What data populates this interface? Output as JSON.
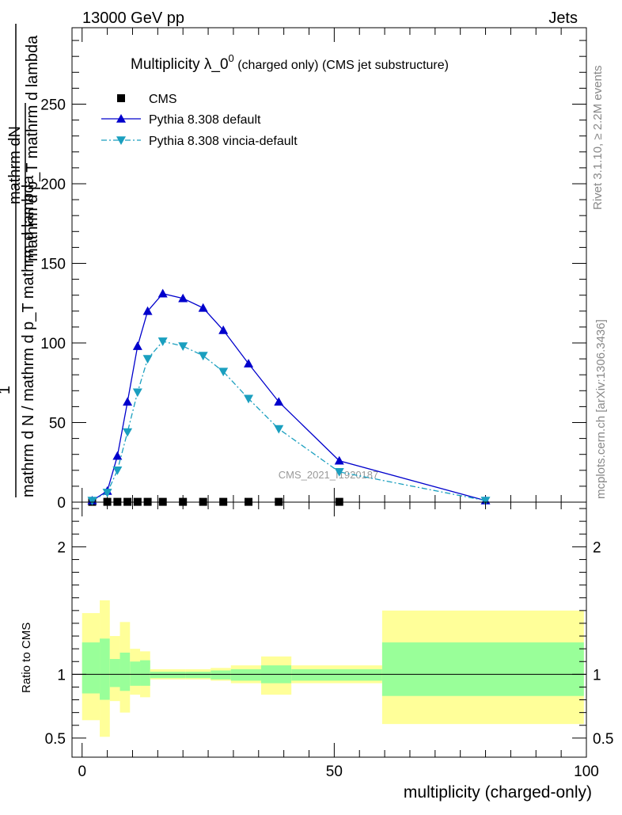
{
  "header": {
    "left": "13000 GeV pp",
    "right": "Jets"
  },
  "side_labels": {
    "rivet": "Rivet 3.1.10, ≥ 2.2M events",
    "mcplots": "mcplots.cern.ch [arXiv:1306.3436]"
  },
  "watermark": "CMS_2021_I1920187",
  "chart_data": [
    {
      "type": "line",
      "title_main": "Multiplicity λ_0",
      "title_sup": "0",
      "title_rest": " (charged only) (CMS jet substructure)",
      "ylabel_top_num": "mathrm dN",
      "ylabel_top_den": "mathrm d p_T mathrm d lambda",
      "ylabel_one": "1",
      "ylabel_bottom": "mathrm d N / mathrm d p_T mathrm d lambda",
      "ylim": [
        0,
        298
      ],
      "xlim": [
        -2,
        100
      ],
      "y_ticks": [
        "0",
        "50",
        "100",
        "150",
        "200",
        "250"
      ],
      "y_tick_values": [
        0,
        50,
        100,
        150,
        200,
        250
      ],
      "legend_position": "top-left",
      "series": [
        {
          "name": "CMS",
          "color": "#000000",
          "marker": "square",
          "x": [
            2,
            5,
            7,
            9,
            11,
            13,
            16,
            20,
            24,
            28,
            33,
            39,
            51
          ],
          "values": [
            0.2,
            0.2,
            0.2,
            0.2,
            0.2,
            0.2,
            0.2,
            0.2,
            0.2,
            0.2,
            0.2,
            0.2,
            0.2
          ]
        },
        {
          "name": "Pythia 8.308 default",
          "color": "#0000cc",
          "marker": "triangle-up",
          "x": [
            2,
            5,
            7,
            9,
            11,
            13,
            16,
            20,
            24,
            28,
            33,
            39,
            51,
            80
          ],
          "values": [
            1,
            7,
            29,
            63,
            98,
            120,
            131,
            128,
            122,
            108,
            87,
            63,
            26,
            1
          ]
        },
        {
          "name": "Pythia 8.308 vincia-default",
          "color": "#1a9fbf",
          "marker": "triangle-down",
          "x": [
            2,
            5,
            7,
            9,
            11,
            13,
            16,
            20,
            24,
            28,
            33,
            39,
            51,
            80
          ],
          "values": [
            1,
            6,
            20,
            44,
            69,
            90,
            101,
            98,
            92,
            82,
            65,
            46,
            19,
            1
          ]
        }
      ]
    },
    {
      "type": "area",
      "ylabel": "Ratio to CMS",
      "xlabel": "multiplicity (charged-only)",
      "ylim": [
        0.35,
        2.35
      ],
      "xlim": [
        -2,
        100
      ],
      "x_ticks": [
        "0",
        "50",
        "100"
      ],
      "x_tick_values": [
        0,
        50,
        100
      ],
      "y_ticks": [
        "0.5",
        "1",
        "2"
      ],
      "y_tick_values": [
        0.5,
        1,
        2
      ],
      "reference_line": 1,
      "bands": [
        {
          "x0": 0,
          "x1": 3.5,
          "inner_lo": 0.85,
          "inner_hi": 1.25,
          "outer_lo": 0.64,
          "outer_hi": 1.48
        },
        {
          "x0": 3.5,
          "x1": 5.5,
          "inner_lo": 0.8,
          "inner_hi": 1.28,
          "outer_lo": 0.51,
          "outer_hi": 1.58
        },
        {
          "x0": 5.5,
          "x1": 7.5,
          "inner_lo": 0.9,
          "inner_hi": 1.12,
          "outer_lo": 0.79,
          "outer_hi": 1.3
        },
        {
          "x0": 7.5,
          "x1": 9.5,
          "inner_lo": 0.87,
          "inner_hi": 1.17,
          "outer_lo": 0.7,
          "outer_hi": 1.41
        },
        {
          "x0": 9.5,
          "x1": 11.5,
          "inner_lo": 0.91,
          "inner_hi": 1.1,
          "outer_lo": 0.84,
          "outer_hi": 1.2
        },
        {
          "x0": 11.5,
          "x1": 13.5,
          "inner_lo": 0.91,
          "inner_hi": 1.11,
          "outer_lo": 0.82,
          "outer_hi": 1.18
        },
        {
          "x0": 13.5,
          "x1": 20.5,
          "inner_lo": 0.97,
          "inner_hi": 1.02,
          "outer_lo": 0.96,
          "outer_hi": 1.04
        },
        {
          "x0": 20.5,
          "x1": 25.5,
          "inner_lo": 0.97,
          "inner_hi": 1.02,
          "outer_lo": 0.96,
          "outer_hi": 1.04
        },
        {
          "x0": 25.5,
          "x1": 29.5,
          "inner_lo": 0.96,
          "inner_hi": 1.03,
          "outer_lo": 0.95,
          "outer_hi": 1.05
        },
        {
          "x0": 29.5,
          "x1": 35.5,
          "inner_lo": 0.95,
          "inner_hi": 1.04,
          "outer_lo": 0.93,
          "outer_hi": 1.07
        },
        {
          "x0": 35.5,
          "x1": 41.5,
          "inner_lo": 0.93,
          "inner_hi": 1.07,
          "outer_lo": 0.84,
          "outer_hi": 1.14
        },
        {
          "x0": 41.5,
          "x1": 59.5,
          "inner_lo": 0.95,
          "inner_hi": 1.04,
          "outer_lo": 0.93,
          "outer_hi": 1.07
        },
        {
          "x0": 59.5,
          "x1": 99.5,
          "inner_lo": 0.83,
          "inner_hi": 1.25,
          "outer_lo": 0.61,
          "outer_hi": 1.5
        }
      ],
      "colors": {
        "inner": "#99ff99",
        "outer": "#ffff99"
      }
    }
  ]
}
